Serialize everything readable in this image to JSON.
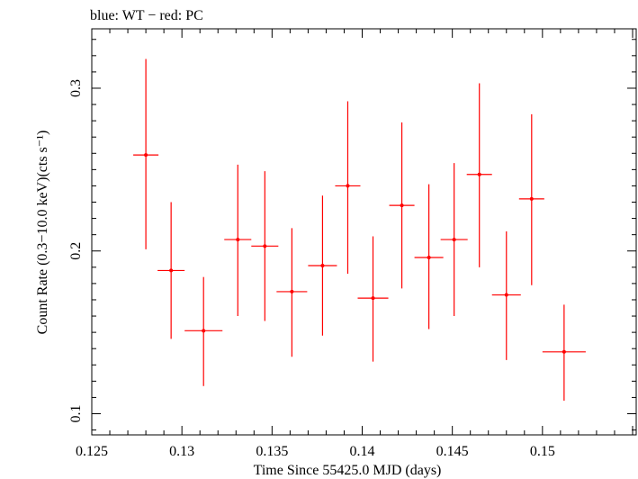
{
  "chart_data": {
    "type": "scatter",
    "title": "blue: WT − red: PC",
    "xlabel": "Time Since 55425.0 MJD (days)",
    "ylabel": "Count Rate (0.3−10.0 keV)(cts s⁻¹)",
    "xlim": [
      0.125,
      0.1552
    ],
    "ylim": [
      0.087,
      0.3365
    ],
    "xticks": [
      0.125,
      0.13,
      0.135,
      0.14,
      0.145,
      0.15
    ],
    "xtick_labels": [
      "0.125",
      "0.13",
      "0.135",
      "0.14",
      "0.145",
      "0.15"
    ],
    "yticks": [
      0.1,
      0.2,
      0.3
    ],
    "ytick_labels": [
      "0.1",
      "0.2",
      "0.3"
    ],
    "grid": false,
    "colors": {
      "PC": "#ff0000",
      "WT": "#0000ff"
    },
    "series": [
      {
        "name": "PC",
        "points": [
          {
            "x": 0.128,
            "xerr": 0.0007,
            "y": 0.259,
            "ylo": 0.201,
            "yhi": 0.318
          },
          {
            "x": 0.1294,
            "xerr": 0.00075,
            "y": 0.188,
            "ylo": 0.146,
            "yhi": 0.23
          },
          {
            "x": 0.1312,
            "xerr": 0.00105,
            "y": 0.151,
            "ylo": 0.117,
            "yhi": 0.184
          },
          {
            "x": 0.1331,
            "xerr": 0.00075,
            "y": 0.207,
            "ylo": 0.16,
            "yhi": 0.253
          },
          {
            "x": 0.1346,
            "xerr": 0.00075,
            "y": 0.203,
            "ylo": 0.157,
            "yhi": 0.249
          },
          {
            "x": 0.1361,
            "xerr": 0.00085,
            "y": 0.175,
            "ylo": 0.135,
            "yhi": 0.214
          },
          {
            "x": 0.1378,
            "xerr": 0.0008,
            "y": 0.191,
            "ylo": 0.148,
            "yhi": 0.234
          },
          {
            "x": 0.1392,
            "xerr": 0.0007,
            "y": 0.24,
            "ylo": 0.186,
            "yhi": 0.292
          },
          {
            "x": 0.1406,
            "xerr": 0.00085,
            "y": 0.171,
            "ylo": 0.132,
            "yhi": 0.209
          },
          {
            "x": 0.1422,
            "xerr": 0.0007,
            "y": 0.228,
            "ylo": 0.177,
            "yhi": 0.279
          },
          {
            "x": 0.1437,
            "xerr": 0.0008,
            "y": 0.196,
            "ylo": 0.152,
            "yhi": 0.241
          },
          {
            "x": 0.1451,
            "xerr": 0.00075,
            "y": 0.207,
            "ylo": 0.16,
            "yhi": 0.254
          },
          {
            "x": 0.1465,
            "xerr": 0.0007,
            "y": 0.247,
            "ylo": 0.19,
            "yhi": 0.303
          },
          {
            "x": 0.148,
            "xerr": 0.0008,
            "y": 0.173,
            "ylo": 0.133,
            "yhi": 0.212
          },
          {
            "x": 0.1494,
            "xerr": 0.0007,
            "y": 0.232,
            "ylo": 0.179,
            "yhi": 0.284
          },
          {
            "x": 0.1512,
            "xerr": 0.0012,
            "y": 0.138,
            "ylo": 0.108,
            "yhi": 0.167
          }
        ]
      }
    ]
  }
}
